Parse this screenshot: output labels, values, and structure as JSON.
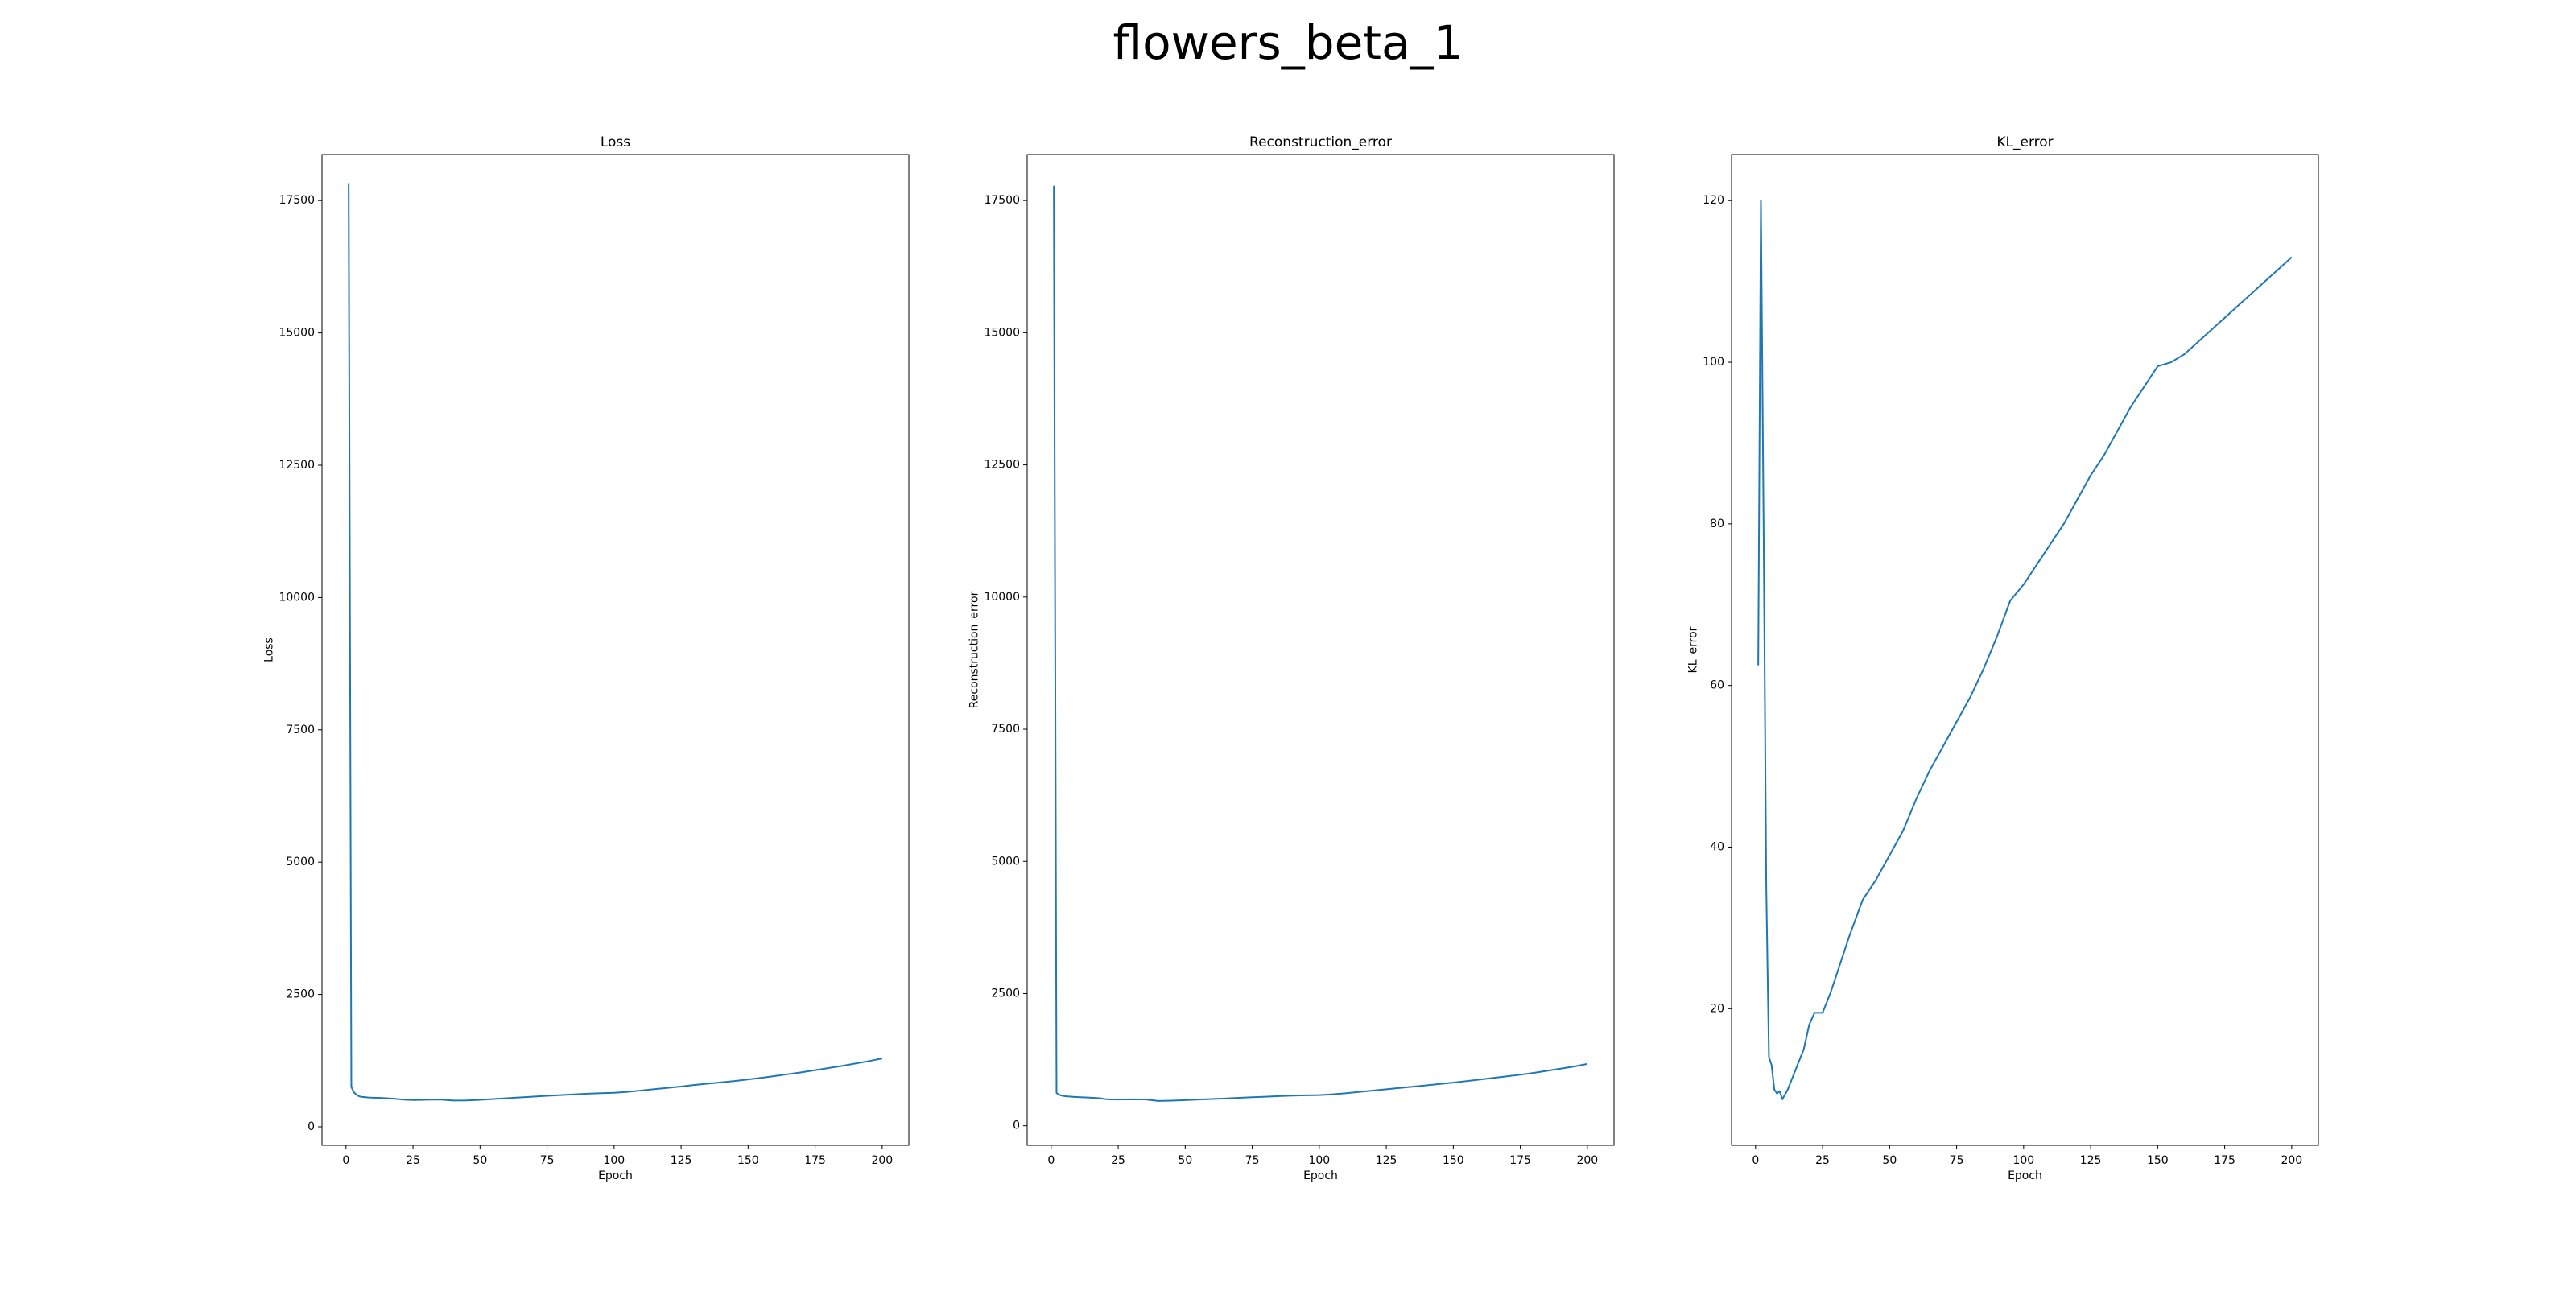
{
  "title": "flowers_beta_1",
  "chart_data": [
    {
      "type": "line",
      "title": "Loss",
      "xlabel": "Epoch",
      "ylabel": "Loss",
      "color": "#1f77b4",
      "x": [
        1,
        2,
        3,
        4,
        5,
        6,
        7,
        8,
        9,
        10,
        12,
        15,
        18,
        20,
        22,
        25,
        28,
        30,
        35,
        40,
        45,
        50,
        55,
        60,
        65,
        70,
        75,
        80,
        85,
        90,
        95,
        100,
        105,
        110,
        115,
        120,
        125,
        130,
        135,
        140,
        145,
        150,
        155,
        160,
        165,
        170,
        175,
        180,
        185,
        190,
        195,
        200
      ],
      "values": [
        17830,
        750,
        650,
        600,
        575,
        565,
        560,
        555,
        552,
        550,
        548,
        540,
        530,
        520,
        512,
        505,
        508,
        512,
        515,
        495,
        498,
        510,
        525,
        540,
        555,
        570,
        585,
        598,
        612,
        625,
        635,
        642,
        660,
        685,
        710,
        735,
        760,
        790,
        815,
        840,
        865,
        895,
        925,
        960,
        995,
        1030,
        1070,
        1110,
        1150,
        1195,
        1240,
        1290
      ],
      "xlim": [
        -8.95,
        209.95
      ],
      "ylim": [
        -350,
        18370
      ],
      "xticks": [
        0,
        25,
        50,
        75,
        100,
        125,
        150,
        175,
        200
      ],
      "yticks": [
        0,
        2500,
        5000,
        7500,
        10000,
        12500,
        15000,
        17500
      ]
    },
    {
      "type": "line",
      "title": "Reconstruction_error",
      "xlabel": "Epoch",
      "ylabel": "Reconstruction_error",
      "color": "#1f77b4",
      "x": [
        1,
        2,
        3,
        4,
        5,
        6,
        7,
        8,
        9,
        10,
        12,
        15,
        18,
        20,
        22,
        25,
        28,
        30,
        35,
        40,
        45,
        50,
        55,
        60,
        65,
        70,
        75,
        80,
        85,
        90,
        95,
        100,
        105,
        110,
        115,
        120,
        125,
        130,
        135,
        140,
        145,
        150,
        155,
        160,
        165,
        170,
        175,
        180,
        185,
        190,
        195,
        200
      ],
      "values": [
        17780,
        620,
        585,
        570,
        560,
        555,
        552,
        548,
        545,
        542,
        538,
        530,
        520,
        505,
        498,
        495,
        497,
        500,
        498,
        470,
        475,
        485,
        495,
        505,
        515,
        528,
        540,
        550,
        560,
        570,
        575,
        580,
        595,
        615,
        640,
        665,
        690,
        715,
        740,
        765,
        790,
        815,
        845,
        875,
        905,
        935,
        965,
        1000,
        1040,
        1080,
        1120,
        1170
      ],
      "xlim": [
        -8.95,
        209.95
      ],
      "ylim": [
        -370,
        18370
      ],
      "xticks": [
        0,
        25,
        50,
        75,
        100,
        125,
        150,
        175,
        200
      ],
      "yticks": [
        0,
        2500,
        5000,
        7500,
        10000,
        12500,
        15000,
        17500
      ]
    },
    {
      "type": "line",
      "title": "KL_error",
      "xlabel": "Epoch",
      "ylabel": "KL_error",
      "color": "#1f77b4",
      "x": [
        1,
        2,
        3,
        4,
        5,
        6,
        7,
        8,
        9,
        10,
        12,
        15,
        18,
        20,
        22,
        25,
        28,
        30,
        35,
        40,
        45,
        50,
        55,
        60,
        65,
        70,
        75,
        80,
        85,
        90,
        95,
        100,
        105,
        110,
        115,
        120,
        125,
        130,
        135,
        140,
        145,
        150,
        155,
        160,
        165,
        170,
        175,
        180,
        185,
        190,
        195,
        200
      ],
      "values": [
        62.5,
        120,
        80,
        35,
        14,
        13,
        10,
        9.5,
        9.8,
        8.8,
        10,
        12.5,
        15,
        18,
        19.5,
        19.5,
        22,
        24,
        29,
        33.5,
        36,
        39,
        42,
        46,
        49.5,
        52.5,
        55.5,
        58.5,
        62,
        66,
        70.5,
        72.5,
        75,
        77.5,
        80,
        83,
        86,
        88.5,
        91.5,
        94.5,
        97,
        99.5,
        100,
        101,
        102.5,
        104,
        105.5,
        107,
        108.5,
        110,
        111.5,
        113
      ],
      "xlim": [
        -8.95,
        209.95
      ],
      "ylim": [
        3.1,
        125.7
      ],
      "xticks": [
        0,
        25,
        50,
        75,
        100,
        125,
        150,
        175,
        200
      ],
      "yticks": [
        20,
        40,
        60,
        80,
        100,
        120
      ]
    }
  ]
}
